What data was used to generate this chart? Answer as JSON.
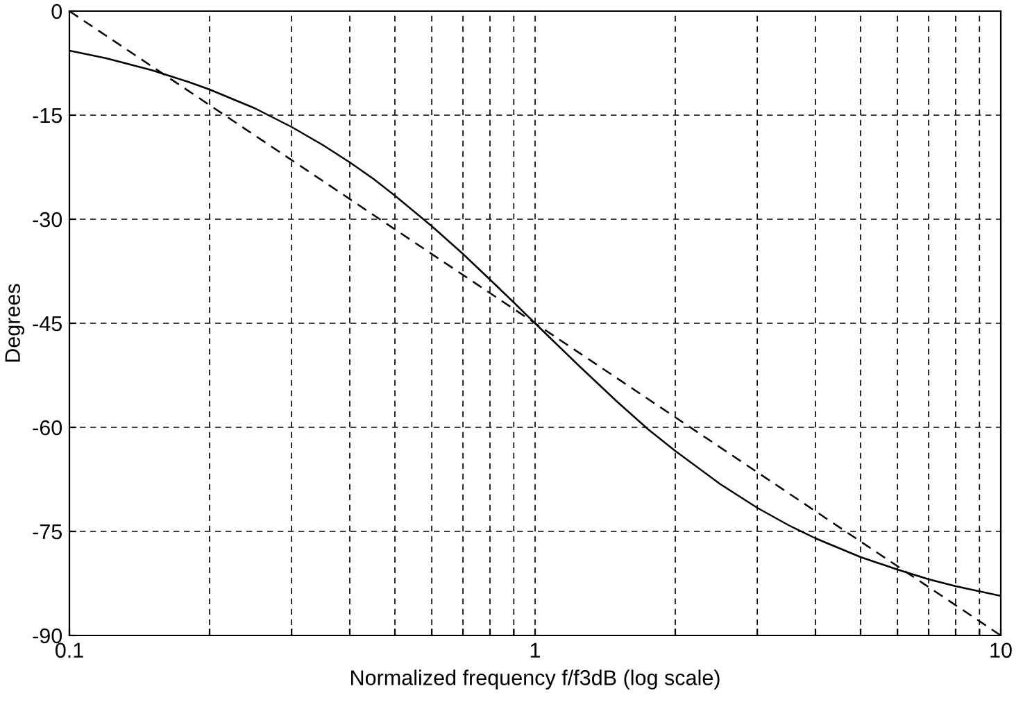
{
  "chart_data": {
    "type": "line",
    "xlabel": "Normalized frequency f/f3dB (log scale)",
    "ylabel": "Degrees",
    "log": "x",
    "grid": true,
    "marker": "none",
    "series": [
      {
        "color": "#000000",
        "line_style": "solid",
        "x": [
          0.1,
          0.12,
          0.15,
          0.18,
          0.2,
          0.25,
          0.3,
          0.35,
          0.4,
          0.45,
          0.5,
          0.6,
          0.7,
          0.8,
          0.9,
          1,
          1.1,
          1.25,
          1.5,
          1.75,
          2,
          2.5,
          3,
          3.5,
          4,
          5,
          6,
          7,
          8,
          10
        ],
        "values": [
          -5.7,
          -6.8,
          -8.5,
          -10.2,
          -11.3,
          -14,
          -16.7,
          -19.3,
          -21.8,
          -24.2,
          -26.6,
          -31,
          -35,
          -38.7,
          -42,
          -45,
          -47.7,
          -51.3,
          -56.3,
          -60.3,
          -63.4,
          -68.2,
          -71.6,
          -74.1,
          -76,
          -78.7,
          -80.5,
          -81.9,
          -82.9,
          -84.3
        ]
      },
      {
        "color": "#000000",
        "line_style": "dashed",
        "x": [
          0.1,
          10
        ],
        "values": [
          0,
          -90
        ]
      }
    ],
    "xlim": [
      0.1,
      10
    ],
    "ylim": [
      -90,
      0
    ],
    "xticks": [
      0.1,
      {
        "value": 0.2,
        "label": null
      },
      {
        "value": 0.3,
        "label": null
      },
      {
        "value": 0.4,
        "label": null
      },
      {
        "value": 0.5,
        "label": null
      },
      {
        "value": 0.6,
        "label": null
      },
      {
        "value": 0.7,
        "label": null
      },
      {
        "value": 0.8,
        "label": null
      },
      {
        "value": 0.9,
        "label": null
      },
      1,
      {
        "value": 2,
        "label": null
      },
      {
        "value": 3,
        "label": null
      },
      {
        "value": 4,
        "label": null
      },
      {
        "value": 5,
        "label": null
      },
      {
        "value": 6,
        "label": null
      },
      {
        "value": 7,
        "label": null
      },
      {
        "value": 8,
        "label": null
      },
      {
        "value": 9,
        "label": null
      },
      10
    ],
    "yticks": [
      -90,
      -75,
      -60,
      -45,
      -30,
      -15,
      0
    ]
  }
}
